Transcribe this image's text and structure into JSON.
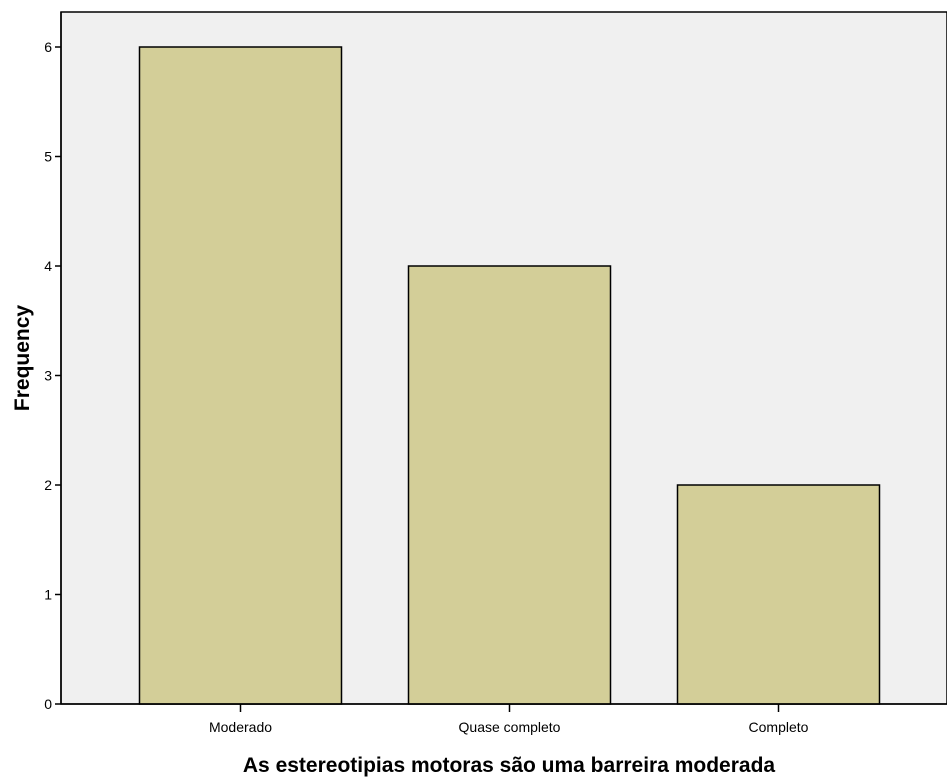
{
  "chart_data": {
    "type": "bar",
    "title": "",
    "xlabel": "As estereotipias motoras são uma barreira moderada",
    "ylabel": "Frequency",
    "categories": [
      "Moderado",
      "Quase completo",
      "Completo"
    ],
    "values": [
      6,
      4,
      2
    ],
    "ylim": [
      0,
      6
    ],
    "yticks": [
      0,
      1,
      2,
      3,
      4,
      5,
      6
    ],
    "grid": false,
    "legend": "none"
  },
  "colors": {
    "plot_background": "#f0f0f0",
    "bar_fill": "#d3ce98",
    "bar_stroke": "#000000",
    "axis": "#000000"
  }
}
